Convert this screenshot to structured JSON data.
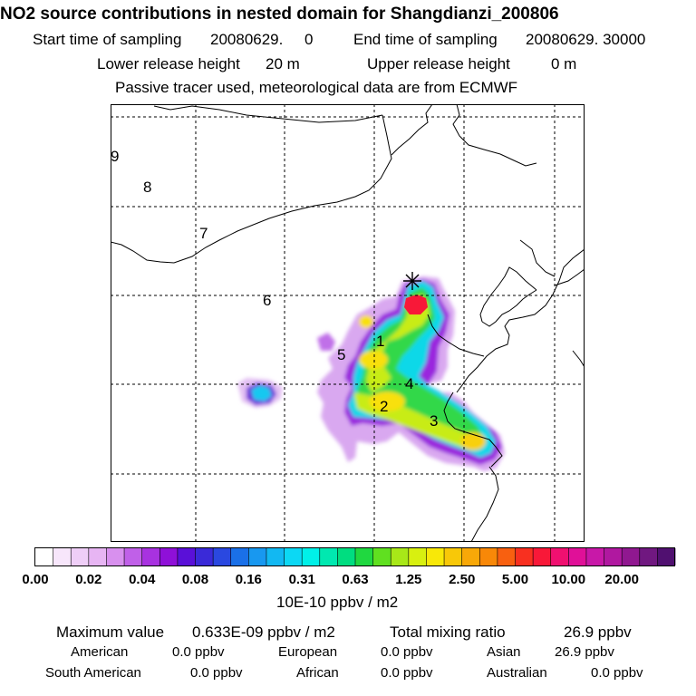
{
  "header": {
    "title": "NO2 source contributions in nested domain for Shangdianzi_200806",
    "start_label": "Start time of sampling",
    "start_value": "20080629.     0",
    "end_label": "End time of sampling",
    "end_value": "20080629. 30000",
    "lower_label": "Lower release height",
    "lower_value": "20 m",
    "upper_label": "Upper release height",
    "upper_value": "0 m",
    "tracer_note": "Passive tracer used, meteorological data are from ECMWF"
  },
  "map": {
    "region_labels": [
      "1",
      "2",
      "3",
      "4",
      "5",
      "6",
      "7",
      "8",
      "9"
    ],
    "receptor_marker": "asterisk-station-icon",
    "colors": {
      "coast": "#000000",
      "grid": "#000000"
    }
  },
  "colorbar": {
    "colors": [
      "#ffffff",
      "#f7e6fb",
      "#efcef7",
      "#e7b5f3",
      "#d890ee",
      "#c060e8",
      "#a832e0",
      "#8f10d8",
      "#5a10d8",
      "#3a2ad8",
      "#2a48e0",
      "#1a70e8",
      "#1898f0",
      "#12b8f2",
      "#0cd8f4",
      "#00f0e8",
      "#00e8b0",
      "#00dd80",
      "#20d840",
      "#60e020",
      "#a8e818",
      "#d8f010",
      "#f8e808",
      "#f8c808",
      "#f8a808",
      "#f88808",
      "#f86010",
      "#f83020",
      "#f81838",
      "#f01070",
      "#e01098",
      "#c818a8",
      "#b018a0",
      "#901890",
      "#701880",
      "#501070"
    ],
    "tick_labels": [
      "0.00",
      "0.02",
      "0.04",
      "0.08",
      "0.16",
      "0.31",
      "0.63",
      "1.25",
      "2.50",
      "5.00",
      "10.00",
      "20.00"
    ],
    "unit": "10E-10 ppbv / m2"
  },
  "footer": {
    "max_label": "Maximum value",
    "max_value": "0.633E-09 ppbv / m2",
    "total_label": "Total mixing ratio",
    "total_value": "26.9 ppbv",
    "regions": [
      {
        "name": "American",
        "value": "0.0 ppbv"
      },
      {
        "name": "European",
        "value": "0.0 ppbv"
      },
      {
        "name": "Asian",
        "value": "26.9 ppbv"
      },
      {
        "name": "South American",
        "value": "0.0 ppbv"
      },
      {
        "name": "African",
        "value": "0.0 ppbv"
      },
      {
        "name": "Australian",
        "value": "0.0 ppbv"
      }
    ]
  }
}
